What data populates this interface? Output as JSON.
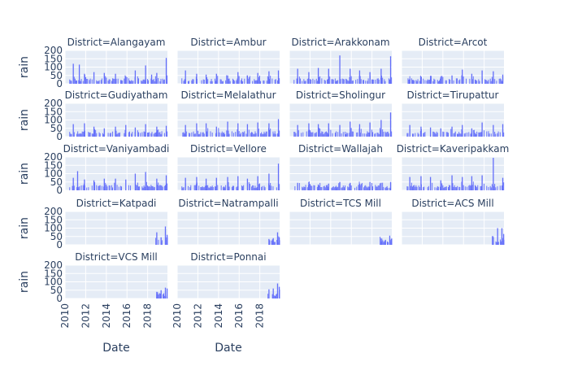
{
  "chart_data": {
    "type": "bar",
    "facet_label": "District",
    "xlabel": "Date",
    "ylabel": "rain",
    "ylim": [
      0,
      200
    ],
    "yticks": [
      0,
      50,
      100,
      150,
      200
    ],
    "xlim": [
      "2010-01-01",
      "2019-12-31"
    ],
    "xticks": [
      "2010",
      "2012",
      "2014",
      "2016",
      "2018"
    ],
    "grid": true,
    "bar_color": "#636efa",
    "plot_bg": "#e5ecf6",
    "facets": [
      {
        "title": "District=Alangayam",
        "x_start": "2010-06",
        "x_end": "2019-12",
        "points": [
          [
            "2010-10",
            120
          ],
          [
            "2011-05",
            115
          ],
          [
            "2011-11",
            60
          ],
          [
            "2012-10",
            70
          ],
          [
            "2013-10",
            65
          ],
          [
            "2014-11",
            60
          ],
          [
            "2015-11",
            45
          ],
          [
            "2016-10",
            80
          ],
          [
            "2017-10",
            110
          ],
          [
            "2018-05",
            55
          ],
          [
            "2018-11",
            65
          ],
          [
            "2019-10",
            155
          ]
        ]
      },
      {
        "title": "District=Ambur",
        "x_start": "2010-06",
        "x_end": "2019-12",
        "points": [
          [
            "2010-10",
            80
          ],
          [
            "2011-11",
            60
          ],
          [
            "2012-10",
            55
          ],
          [
            "2013-10",
            60
          ],
          [
            "2014-11",
            50
          ],
          [
            "2015-11",
            70
          ],
          [
            "2016-10",
            50
          ],
          [
            "2017-10",
            65
          ],
          [
            "2018-11",
            75
          ],
          [
            "2019-10",
            80
          ]
        ]
      },
      {
        "title": "District=Arakkonam",
        "x_start": "2010-06",
        "x_end": "2019-12",
        "points": [
          [
            "2010-10",
            90
          ],
          [
            "2011-11",
            70
          ],
          [
            "2012-10",
            95
          ],
          [
            "2013-10",
            90
          ],
          [
            "2014-11",
            170
          ],
          [
            "2015-11",
            90
          ],
          [
            "2016-10",
            80
          ],
          [
            "2017-10",
            70
          ],
          [
            "2018-11",
            90
          ],
          [
            "2019-10",
            165
          ]
        ]
      },
      {
        "title": "District=Arcot",
        "x_start": "2010-06",
        "x_end": "2019-12",
        "points": [
          [
            "2010-10",
            30
          ],
          [
            "2011-11",
            40
          ],
          [
            "2012-10",
            30
          ],
          [
            "2013-10",
            40
          ],
          [
            "2014-11",
            50
          ],
          [
            "2015-11",
            85
          ],
          [
            "2016-10",
            60
          ],
          [
            "2017-10",
            80
          ],
          [
            "2018-11",
            75
          ],
          [
            "2019-10",
            55
          ]
        ]
      },
      {
        "title": "District=Gudiyatham",
        "x_start": "2010-06",
        "x_end": "2019-12",
        "points": [
          [
            "2010-10",
            75
          ],
          [
            "2011-11",
            80
          ],
          [
            "2012-10",
            60
          ],
          [
            "2013-10",
            50
          ],
          [
            "2014-11",
            60
          ],
          [
            "2015-11",
            70
          ],
          [
            "2016-10",
            55
          ],
          [
            "2017-10",
            75
          ],
          [
            "2018-11",
            60
          ],
          [
            "2019-10",
            65
          ]
        ]
      },
      {
        "title": "District=Melalathur",
        "x_start": "2010-06",
        "x_end": "2019-12",
        "points": [
          [
            "2010-10",
            70
          ],
          [
            "2011-11",
            80
          ],
          [
            "2012-10",
            80
          ],
          [
            "2013-10",
            60
          ],
          [
            "2014-11",
            90
          ],
          [
            "2015-11",
            80
          ],
          [
            "2016-10",
            75
          ],
          [
            "2017-10",
            85
          ],
          [
            "2018-11",
            80
          ],
          [
            "2019-10",
            105
          ]
        ]
      },
      {
        "title": "District=Sholingur",
        "x_start": "2010-06",
        "x_end": "2019-12",
        "points": [
          [
            "2010-10",
            70
          ],
          [
            "2011-11",
            80
          ],
          [
            "2012-10",
            75
          ],
          [
            "2013-10",
            80
          ],
          [
            "2014-11",
            70
          ],
          [
            "2015-11",
            90
          ],
          [
            "2016-10",
            75
          ],
          [
            "2017-10",
            85
          ],
          [
            "2018-11",
            100
          ],
          [
            "2019-10",
            145
          ]
        ]
      },
      {
        "title": "District=Tirupattur",
        "x_start": "2010-06",
        "x_end": "2019-12",
        "points": [
          [
            "2010-10",
            70
          ],
          [
            "2011-11",
            60
          ],
          [
            "2012-10",
            55
          ],
          [
            "2013-10",
            50
          ],
          [
            "2014-11",
            60
          ],
          [
            "2015-11",
            70
          ],
          [
            "2016-10",
            50
          ],
          [
            "2017-10",
            85
          ],
          [
            "2018-11",
            70
          ],
          [
            "2019-10",
            75
          ]
        ]
      },
      {
        "title": "District=Vaniyambadi",
        "x_start": "2010-06",
        "x_end": "2019-12",
        "points": [
          [
            "2010-10",
            75
          ],
          [
            "2011-03",
            115
          ],
          [
            "2011-11",
            65
          ],
          [
            "2012-10",
            60
          ],
          [
            "2013-10",
            70
          ],
          [
            "2014-11",
            70
          ],
          [
            "2015-11",
            65
          ],
          [
            "2016-10",
            100
          ],
          [
            "2017-10",
            110
          ],
          [
            "2018-11",
            70
          ],
          [
            "2019-10",
            90
          ]
        ]
      },
      {
        "title": "District=Vellore",
        "x_start": "2010-06",
        "x_end": "2019-12",
        "points": [
          [
            "2010-10",
            75
          ],
          [
            "2011-11",
            80
          ],
          [
            "2012-10",
            70
          ],
          [
            "2013-10",
            75
          ],
          [
            "2014-11",
            80
          ],
          [
            "2015-11",
            85
          ],
          [
            "2016-10",
            70
          ],
          [
            "2017-10",
            85
          ],
          [
            "2018-11",
            100
          ],
          [
            "2019-10",
            160
          ]
        ]
      },
      {
        "title": "District=Wallajah",
        "x_start": "2010-06",
        "x_end": "2019-12",
        "points": [
          [
            "2010-10",
            45
          ],
          [
            "2011-11",
            50
          ],
          [
            "2012-10",
            35
          ],
          [
            "2013-10",
            40
          ],
          [
            "2014-11",
            50
          ],
          [
            "2015-11",
            45
          ],
          [
            "2016-10",
            40
          ],
          [
            "2017-10",
            50
          ],
          [
            "2018-11",
            45
          ],
          [
            "2019-10",
            50
          ]
        ]
      },
      {
        "title": "District=Kaveripakkam",
        "x_start": "2010-06",
        "x_end": "2019-12",
        "points": [
          [
            "2010-10",
            80
          ],
          [
            "2011-11",
            85
          ],
          [
            "2012-10",
            80
          ],
          [
            "2013-10",
            60
          ],
          [
            "2014-11",
            90
          ],
          [
            "2015-11",
            80
          ],
          [
            "2016-10",
            85
          ],
          [
            "2017-10",
            90
          ],
          [
            "2018-11",
            195
          ],
          [
            "2019-10",
            75
          ]
        ]
      },
      {
        "title": "District=Katpadi",
        "x_start": "2018-10",
        "x_end": "2019-12",
        "points": [
          [
            "2018-11",
            75
          ],
          [
            "2019-04",
            45
          ],
          [
            "2019-09",
            110
          ],
          [
            "2019-11",
            60
          ]
        ]
      },
      {
        "title": "District=Natrampalli",
        "x_start": "2018-10",
        "x_end": "2019-12",
        "points": [
          [
            "2018-11",
            35
          ],
          [
            "2019-04",
            40
          ],
          [
            "2019-09",
            75
          ],
          [
            "2019-11",
            45
          ]
        ]
      },
      {
        "title": "District=TCS Mill",
        "x_start": "2018-10",
        "x_end": "2019-12",
        "points": [
          [
            "2018-11",
            20
          ],
          [
            "2019-04",
            30
          ],
          [
            "2019-09",
            55
          ],
          [
            "2019-11",
            35
          ]
        ]
      },
      {
        "title": "District=ACS Mill",
        "x_start": "2018-10",
        "x_end": "2019-12",
        "points": [
          [
            "2018-11",
            45
          ],
          [
            "2019-04",
            100
          ],
          [
            "2019-09",
            100
          ],
          [
            "2019-11",
            65
          ]
        ]
      },
      {
        "title": "District=VCS Mill",
        "x_start": "2018-10",
        "x_end": "2019-12",
        "points": [
          [
            "2018-11",
            40
          ],
          [
            "2019-04",
            50
          ],
          [
            "2019-09",
            65
          ],
          [
            "2019-11",
            60
          ]
        ]
      },
      {
        "title": "District=Ponnai",
        "x_start": "2018-10",
        "x_end": "2019-12",
        "points": [
          [
            "2018-11",
            55
          ],
          [
            "2019-04",
            60
          ],
          [
            "2019-09",
            90
          ],
          [
            "2019-11",
            70
          ]
        ]
      }
    ]
  }
}
